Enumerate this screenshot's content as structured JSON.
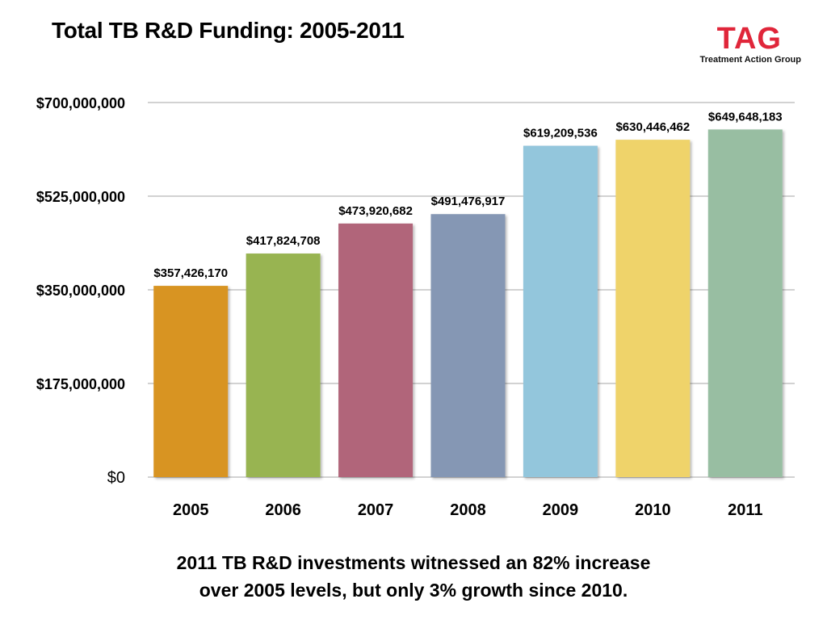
{
  "title": "Total TB R&D Funding: 2005-2011",
  "logo": {
    "mark": "TAG",
    "subtitle": "Treatment Action Group",
    "color": "#e0263a"
  },
  "caption": {
    "line1": "2011 TB R&D investments witnessed an 82% increase",
    "line2": "over 2005 levels, but only 3% growth since 2010."
  },
  "chart_data": {
    "type": "bar",
    "title": "Total TB R&D Funding: 2005-2011",
    "xlabel": "",
    "ylabel": "",
    "categories": [
      "2005",
      "2006",
      "2007",
      "2008",
      "2009",
      "2010",
      "2011"
    ],
    "values": [
      357426170,
      417824708,
      473920682,
      491476917,
      619209536,
      630446462,
      649648183
    ],
    "value_labels": [
      "$357,426,170",
      "$417,824,708",
      "$473,920,682",
      "$491,476,917",
      "$619,209,536",
      "$630,446,462",
      "$649,648,183"
    ],
    "colors": [
      "#d89422",
      "#98b451",
      "#b1657a",
      "#8597b4",
      "#93c6dc",
      "#efd36b",
      "#98bea2"
    ],
    "ylim": [
      0,
      700000000
    ],
    "yticks": [
      0,
      175000000,
      350000000,
      525000000,
      700000000
    ],
    "ytick_labels": [
      "$0",
      "$175,000,000",
      "$350,000,000",
      "$525,000,000",
      "$700,000,000"
    ],
    "grid": true,
    "legend": "none"
  }
}
